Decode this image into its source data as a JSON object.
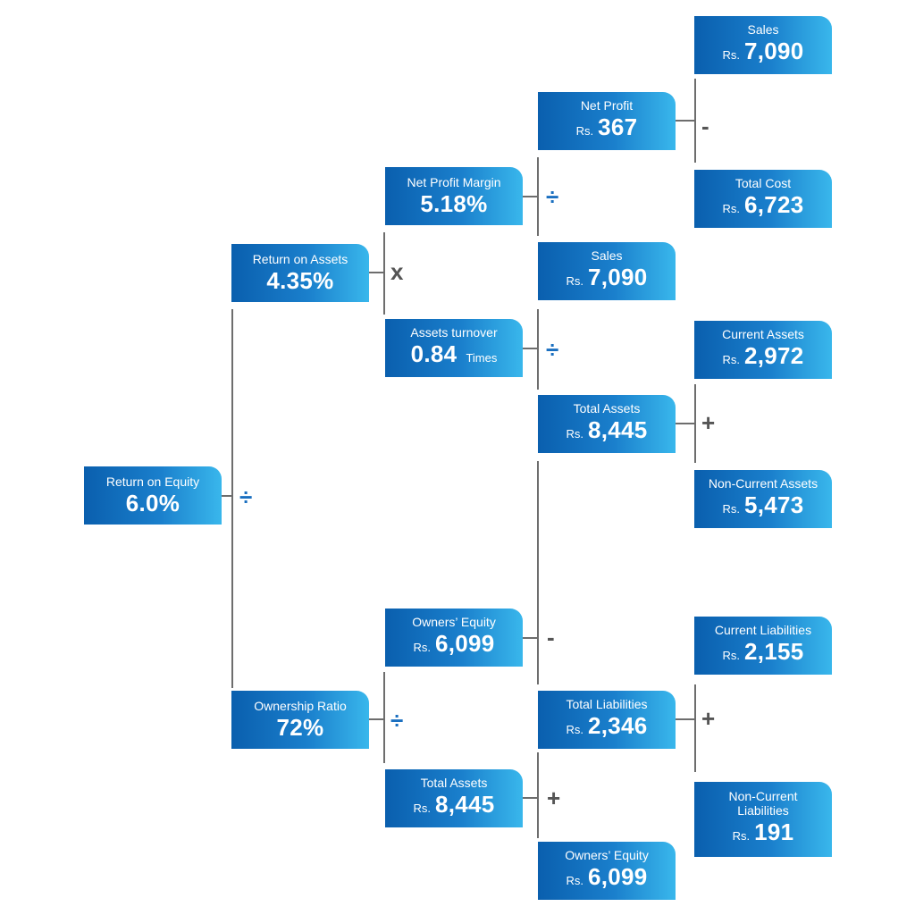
{
  "currency": "Rs.",
  "colors": {
    "box_start": "#0a5fae",
    "box_end": "#39b7ec",
    "connector": "#6d6d6d",
    "divide_operator": "#1a6fc0",
    "other_operator": "#555555"
  },
  "nodes": {
    "return_on_equity": {
      "label": "Return on Equity",
      "value": "6.0%"
    },
    "return_on_assets": {
      "label": "Return on Assets",
      "value": "4.35%"
    },
    "ownership_ratio": {
      "label": "Ownership Ratio",
      "value": "72%"
    },
    "net_profit_margin": {
      "label": "Net Profit Margin",
      "value": "5.18%"
    },
    "assets_turnover": {
      "label": "Assets turnover",
      "value": "0.84",
      "unit": "Times"
    },
    "owners_equity_mid": {
      "label": "Owners’ Equity",
      "value": "6,099"
    },
    "total_assets_mid": {
      "label": "Total Assets",
      "value": "8,445"
    },
    "net_profit": {
      "label": "Net Profit",
      "value": "367"
    },
    "sales_mid": {
      "label": "Sales",
      "value": "7,090"
    },
    "total_assets_right": {
      "label": "Total Assets",
      "value": "8,445"
    },
    "total_liabilities": {
      "label": "Total Liabilities",
      "value": "2,346"
    },
    "owners_equity_right": {
      "label": "Owners’ Equity",
      "value": "6,099"
    },
    "sales_top": {
      "label": "Sales",
      "value": "7,090"
    },
    "total_cost": {
      "label": "Total Cost",
      "value": "6,723"
    },
    "current_assets": {
      "label": "Current Assets",
      "value": "2,972"
    },
    "non_current_assets": {
      "label": "Non-Current Assets",
      "value": "5,473"
    },
    "current_liabilities": {
      "label": "Current Liabilities",
      "value": "2,155"
    },
    "non_current_liabilities": {
      "label": "Non-Current Liabilities",
      "value": "191"
    }
  },
  "operators": {
    "roe": "÷",
    "roa": "x",
    "npm": "÷",
    "at": "÷",
    "net_profit": "-",
    "total_assets_right": "+",
    "equity_split": "-",
    "ownership_ratio": "÷",
    "total_liabilities": "+",
    "total_assets_mid": "+"
  }
}
